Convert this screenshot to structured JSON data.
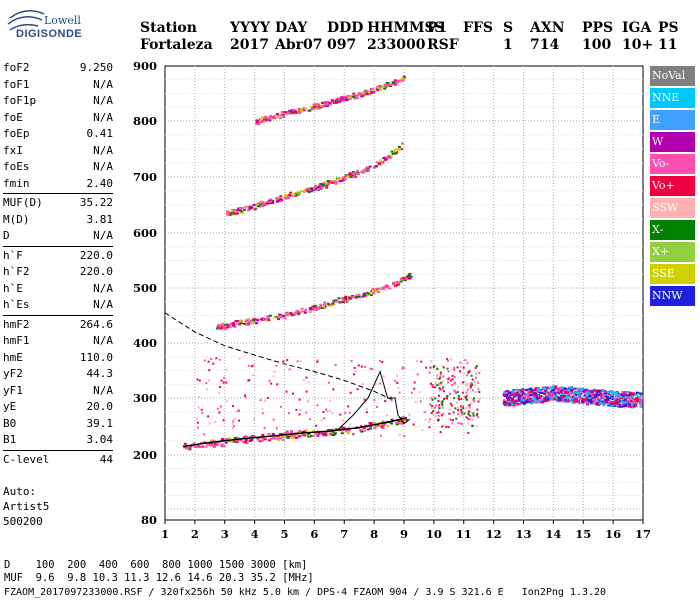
{
  "logo": {
    "line1": "Lowell",
    "line2": "DIGISONDE"
  },
  "header": {
    "row1": [
      "Station",
      "YYYY",
      "DAY",
      "DDD",
      "HHMMSS",
      "P1",
      "FFS",
      "S",
      "AXN",
      "PPS",
      "IGA",
      "PS"
    ],
    "row2": [
      "Fortaleza",
      "2017",
      "Abr07",
      "097",
      "233000",
      "RSF",
      "1",
      "714",
      "100",
      "10+",
      "11"
    ]
  },
  "params": {
    "group1": [
      {
        "label": "foF2",
        "value": "9.250"
      },
      {
        "label": "foF1",
        "value": "N/A"
      },
      {
        "label": "foF1p",
        "value": "N/A"
      },
      {
        "label": "foE",
        "value": "N/A"
      },
      {
        "label": "foEp",
        "value": "0.41"
      },
      {
        "label": "fxI",
        "value": "N/A"
      },
      {
        "label": "foEs",
        "value": "N/A"
      },
      {
        "label": "fmin",
        "value": "2.40"
      }
    ],
    "group2": [
      {
        "label": "MUF(D)",
        "value": "35.22"
      },
      {
        "label": "M(D)",
        "value": "3.81"
      },
      {
        "label": "D",
        "value": "N/A"
      }
    ],
    "group3": [
      {
        "label": "h`F",
        "value": "220.0"
      },
      {
        "label": "h`F2",
        "value": "220.0"
      },
      {
        "label": "h`E",
        "value": "N/A"
      },
      {
        "label": "h`Es",
        "value": "N/A"
      }
    ],
    "group4": [
      {
        "label": "hmF2",
        "value": "264.6"
      },
      {
        "label": "hmF1",
        "value": "N/A"
      },
      {
        "label": "hmE",
        "value": "110.0"
      },
      {
        "label": "yF2",
        "value": "44.3"
      },
      {
        "label": "yF1",
        "value": "N/A"
      },
      {
        "label": "yE",
        "value": "20.0"
      },
      {
        "label": "B0",
        "value": "39.1"
      },
      {
        "label": "B1",
        "value": "3.04"
      }
    ],
    "group5": [
      {
        "label": "C-level",
        "value": "44"
      }
    ]
  },
  "auto": {
    "line1": "Auto:",
    "line2": "Artist5",
    "line3": "500200"
  },
  "legend": [
    {
      "label": "NoVal",
      "color": "#808080"
    },
    {
      "label": "NNE",
      "color": "#00c8ff"
    },
    {
      "label": "E",
      "color": "#40a0ff"
    },
    {
      "label": "W",
      "color": "#b000b0"
    },
    {
      "label": "Vo-",
      "color": "#ff4fb0"
    },
    {
      "label": "Vo+",
      "color": "#f00040"
    },
    {
      "label": "SSW",
      "color": "#ffb0b0"
    },
    {
      "label": "X-",
      "color": "#008000"
    },
    {
      "label": "X+",
      "color": "#90d040"
    },
    {
      "label": "SSE",
      "color": "#d0d000"
    },
    {
      "label": "NNW",
      "color": "#2020e0"
    }
  ],
  "footer": {
    "line1": "D    100  200  400  600  800 1000 1500 3000 [km]",
    "line2": "MUF  9.6  9.8 10.3 11.3 12.6 14.6 20.3 35.2 [MHz]",
    "line3": "FZAOM_2017097233000.RSF / 320fx256h 50 kHz 5.0 km / DPS-4 FZAOM 904 / 3.9 S 321.6 E   Ion2Png 1.3.20"
  },
  "chart_data": {
    "type": "scatter",
    "xlim": [
      1,
      17
    ],
    "ylim": [
      80,
      900
    ],
    "x_ticks": [
      1,
      2,
      3,
      4,
      5,
      6,
      7,
      8,
      9,
      10,
      11,
      12,
      13,
      14,
      15,
      16,
      17
    ],
    "y_ticks": [
      80,
      200,
      300,
      400,
      500,
      600,
      700,
      800,
      900
    ],
    "grid": true,
    "traces": [
      {
        "name": "o-trace first hop",
        "points": [
          [
            1.6,
            215
          ],
          [
            2.5,
            222
          ],
          [
            3.5,
            228
          ],
          [
            4.5,
            233
          ],
          [
            5.5,
            238
          ],
          [
            6.5,
            242
          ],
          [
            7.5,
            248
          ],
          [
            8.5,
            258
          ],
          [
            9.1,
            265
          ]
        ]
      },
      {
        "name": "second hop",
        "points": [
          [
            2.7,
            430
          ],
          [
            3.5,
            438
          ],
          [
            4.5,
            447
          ],
          [
            5.5,
            458
          ],
          [
            6.5,
            474
          ],
          [
            7.5,
            488
          ],
          [
            8.5,
            505
          ],
          [
            9.2,
            525
          ]
        ]
      },
      {
        "name": "third hop",
        "points": [
          [
            3.0,
            635
          ],
          [
            4.0,
            650
          ],
          [
            5.0,
            666
          ],
          [
            6.0,
            682
          ],
          [
            7.0,
            700
          ],
          [
            8.0,
            722
          ],
          [
            9.0,
            760
          ]
        ]
      },
      {
        "name": "fourth hop",
        "points": [
          [
            4.0,
            800
          ],
          [
            5.0,
            815
          ],
          [
            6.0,
            828
          ],
          [
            7.0,
            842
          ],
          [
            8.0,
            858
          ],
          [
            9.0,
            880
          ]
        ]
      },
      {
        "name": "model profile",
        "points": [
          [
            1.0,
            455
          ],
          [
            2.0,
            420
          ],
          [
            3.0,
            395
          ],
          [
            4.0,
            378
          ],
          [
            5.0,
            362
          ],
          [
            6.0,
            348
          ],
          [
            7.0,
            332
          ],
          [
            8.0,
            312
          ],
          [
            8.7,
            295
          ]
        ]
      },
      {
        "name": "spread F",
        "points": [
          [
            12.3,
            300
          ],
          [
            13,
            305
          ],
          [
            14,
            310
          ],
          [
            15,
            305
          ],
          [
            16,
            300
          ],
          [
            16.9,
            298
          ]
        ]
      }
    ]
  }
}
